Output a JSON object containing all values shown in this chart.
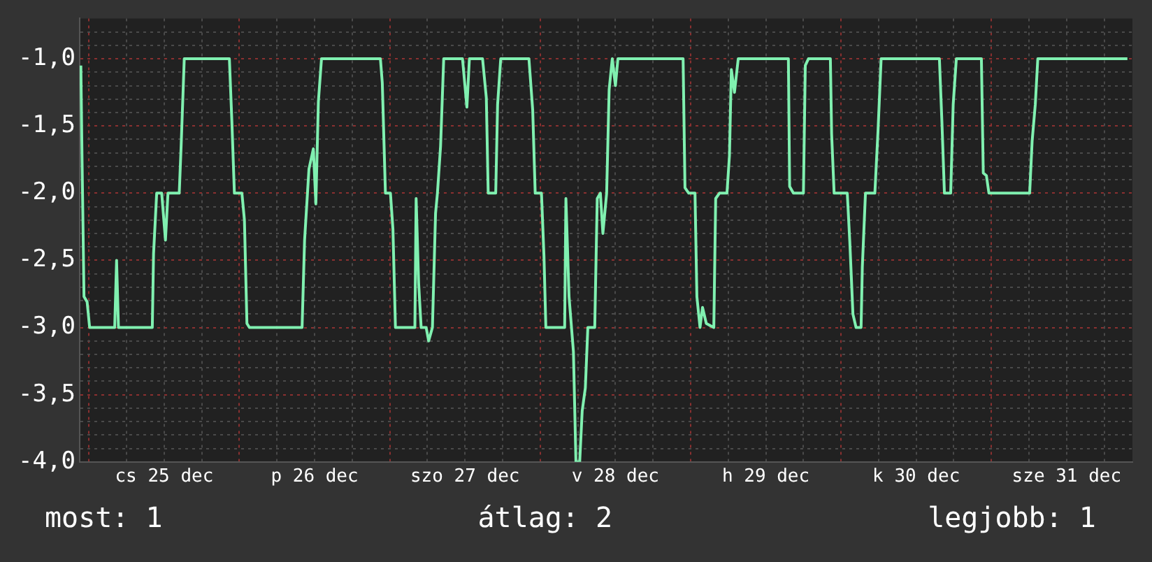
{
  "chart_data": {
    "type": "line",
    "color": "#80f0b0",
    "x": [
      "--12-24T22:42",
      "--12-24T22:54",
      "--12-24T23:12",
      "--12-24T23:42",
      "--12-25T00:06",
      "--12-25T04:06",
      "--12-25T04:24",
      "--12-25T04:42",
      "--12-25T10:06",
      "--12-25T10:18",
      "--12-25T10:48",
      "--12-25T11:36",
      "--12-25T12:12",
      "--12-25T12:36",
      "--12-25T14:24",
      "--12-25T14:42",
      "--12-25T15:12",
      "--12-25T22:24",
      "--12-25T22:48",
      "--12-25T23:12",
      "--12-26T00:24",
      "--12-26T00:48",
      "--12-26T01:12",
      "--12-26T01:36",
      "--12-26T10:00",
      "--12-26T10:24",
      "--12-26T11:06",
      "--12-26T11:48",
      "--12-26T12:12",
      "--12-26T12:36",
      "--12-26T13:06",
      "--12-26T22:30",
      "--12-26T22:48",
      "--12-26T23:18",
      "--12-27T00:06",
      "--12-27T00:30",
      "--12-27T00:54",
      "--12-27T04:00",
      "--12-27T04:12",
      "--12-27T04:36",
      "--12-27T05:00",
      "--12-27T05:48",
      "--12-27T06:12",
      "--12-27T06:48",
      "--12-27T07:18",
      "--12-27T07:36",
      "--12-27T08:06",
      "--12-27T08:36",
      "--12-27T11:36",
      "--12-27T12:18",
      "--12-27T12:42",
      "--12-27T14:48",
      "--12-27T15:24",
      "--12-27T15:42",
      "--12-27T16:54",
      "--12-27T17:12",
      "--12-27T17:42",
      "--12-27T22:12",
      "--12-27T22:48",
      "--12-27T23:12",
      "--12-28T00:12",
      "--12-28T00:36",
      "--12-28T00:54",
      "--12-28T03:54",
      "--12-28T04:06",
      "--12-28T04:36",
      "--12-28T05:18",
      "--12-28T05:42",
      "--12-28T06:18",
      "--12-28T06:42",
      "--12-28T07:12",
      "--12-28T07:36",
      "--12-28T08:42",
      "--12-28T09:06",
      "--12-28T09:36",
      "--12-28T10:00",
      "--12-28T10:36",
      "--12-28T11:00",
      "--12-28T11:30",
      "--12-28T12:00",
      "--12-28T12:24",
      "--12-28T22:48",
      "--12-28T23:06",
      "--12-28T23:42",
      "--12-29T00:42",
      "--12-29T01:00",
      "--12-29T01:30",
      "--12-29T01:54",
      "--12-29T02:30",
      "--12-29T03:42",
      "--12-29T04:00",
      "--12-29T04:36",
      "--12-29T05:48",
      "--12-29T06:12",
      "--12-29T06:30",
      "--12-29T07:00",
      "--12-29T07:36",
      "--12-29T15:36",
      "--12-29T15:48",
      "--12-29T16:24",
      "--12-29T18:00",
      "--12-29T18:18",
      "--12-29T18:48",
      "--12-29T22:18",
      "--12-29T22:30",
      "--12-29T22:54",
      "--12-30T01:00",
      "--12-30T01:24",
      "--12-30T01:54",
      "--12-30T02:24",
      "--12-30T03:12",
      "--12-30T03:24",
      "--12-30T03:54",
      "--12-30T05:24",
      "--12-30T05:54",
      "--12-30T06:24",
      "--12-30T15:42",
      "--12-30T16:06",
      "--12-30T16:30",
      "--12-30T17:30",
      "--12-30T17:54",
      "--12-30T18:24",
      "--12-30T22:24",
      "--12-30T22:42",
      "--12-30T23:12",
      "--12-30T23:36",
      "--12-31T06:06",
      "--12-31T06:30",
      "--12-31T07:00",
      "--12-31T07:24",
      "--12-31T21:42"
    ],
    "values": [
      -1.05,
      -1.78,
      -2.77,
      -2.81,
      -3.0,
      -3.0,
      -2.5,
      -3.0,
      -3.0,
      -2.45,
      -2.0,
      -2.0,
      -2.35,
      -2.0,
      -2.0,
      -1.65,
      -1.0,
      -1.0,
      -1.47,
      -2.0,
      -2.0,
      -2.2,
      -2.97,
      -3.0,
      -3.0,
      -2.35,
      -1.82,
      -1.67,
      -2.08,
      -1.32,
      -1.0,
      -1.0,
      -1.18,
      -2.0,
      -2.0,
      -2.27,
      -3.0,
      -3.0,
      -2.04,
      -2.67,
      -3.0,
      -3.0,
      -3.1,
      -3.0,
      -2.15,
      -2.0,
      -1.65,
      -1.0,
      -1.0,
      -1.36,
      -1.0,
      -1.0,
      -1.29,
      -2.0,
      -2.0,
      -1.34,
      -1.0,
      -1.0,
      -1.38,
      -2.0,
      -2.0,
      -2.47,
      -3.0,
      -3.0,
      -2.04,
      -2.77,
      -3.18,
      -4.0,
      -4.0,
      -3.62,
      -3.45,
      -3.0,
      -3.0,
      -2.04,
      -2.0,
      -2.3,
      -2.0,
      -1.23,
      -1.0,
      -1.2,
      -1.0,
      -1.0,
      -1.96,
      -2.0,
      -2.0,
      -2.77,
      -3.0,
      -2.85,
      -2.97,
      -3.0,
      -2.04,
      -2.0,
      -2.0,
      -1.72,
      -1.08,
      -1.25,
      -1.0,
      -1.0,
      -1.95,
      -2.0,
      -2.0,
      -1.05,
      -1.0,
      -1.0,
      -1.56,
      -2.0,
      -2.0,
      -2.36,
      -2.9,
      -3.0,
      -3.0,
      -2.55,
      -2.0,
      -2.0,
      -1.54,
      -1.0,
      -1.0,
      -1.47,
      -2.0,
      -2.0,
      -1.34,
      -1.0,
      -1.0,
      -1.85,
      -1.87,
      -2.0,
      -2.0,
      -1.61,
      -1.34,
      -1.0,
      -1.0
    ],
    "xlim": [
      "--12-24T22:30",
      "--12-31T22:30"
    ],
    "xticks": [
      {
        "value": "--12-25T00:00",
        "label": null
      },
      {
        "value": "--12-25T06:00",
        "label": null
      },
      {
        "value": "--12-25T12:00",
        "label": "cs 25 dec"
      },
      {
        "value": "--12-25T18:00",
        "label": null
      },
      {
        "value": "--12-26T00:00",
        "label": null
      },
      {
        "value": "--12-26T06:00",
        "label": null
      },
      {
        "value": "--12-26T12:00",
        "label": "p 26 dec"
      },
      {
        "value": "--12-26T18:00",
        "label": null
      },
      {
        "value": "--12-27T00:00",
        "label": null
      },
      {
        "value": "--12-27T06:00",
        "label": null
      },
      {
        "value": "--12-27T12:00",
        "label": "szo 27 dec"
      },
      {
        "value": "--12-27T18:00",
        "label": null
      },
      {
        "value": "--12-28T00:00",
        "label": null
      },
      {
        "value": "--12-28T06:00",
        "label": null
      },
      {
        "value": "--12-28T12:00",
        "label": "v 28 dec"
      },
      {
        "value": "--12-28T18:00",
        "label": null
      },
      {
        "value": "--12-29T00:00",
        "label": null
      },
      {
        "value": "--12-29T06:00",
        "label": null
      },
      {
        "value": "--12-29T12:00",
        "label": "h 29 dec"
      },
      {
        "value": "--12-29T18:00",
        "label": null
      },
      {
        "value": "--12-30T00:00",
        "label": null
      },
      {
        "value": "--12-30T06:00",
        "label": null
      },
      {
        "value": "--12-30T12:00",
        "label": "k 30 dec"
      },
      {
        "value": "--12-30T18:00",
        "label": null
      },
      {
        "value": "--12-31T00:00",
        "label": null
      },
      {
        "value": "--12-31T06:00",
        "label": null
      },
      {
        "value": "--12-31T12:00",
        "label": "sze 31 dec"
      },
      {
        "value": "--12-31T18:00",
        "label": null
      }
    ],
    "ylim": [
      -4,
      -0.7
    ],
    "yticks": [
      {
        "value": -4,
        "label": "-4,0"
      },
      {
        "value": -3.9,
        "label": null
      },
      {
        "value": -3.8,
        "label": null
      },
      {
        "value": -3.7,
        "label": null
      },
      {
        "value": -3.6,
        "label": null
      },
      {
        "value": -3.5,
        "label": "-3,5"
      },
      {
        "value": -3.4,
        "label": null
      },
      {
        "value": -3.3,
        "label": null
      },
      {
        "value": -3.2,
        "label": null
      },
      {
        "value": -3.1,
        "label": null
      },
      {
        "value": -3,
        "label": "-3,0"
      },
      {
        "value": -2.9,
        "label": null
      },
      {
        "value": -2.8,
        "label": null
      },
      {
        "value": -2.7,
        "label": null
      },
      {
        "value": -2.6,
        "label": null
      },
      {
        "value": -2.5,
        "label": "-2,5"
      },
      {
        "value": -2.4,
        "label": null
      },
      {
        "value": -2.3,
        "label": null
      },
      {
        "value": -2.2,
        "label": null
      },
      {
        "value": -2.1,
        "label": null
      },
      {
        "value": -2,
        "label": "-2,0"
      },
      {
        "value": -1.9,
        "label": null
      },
      {
        "value": -1.8,
        "label": null
      },
      {
        "value": -1.7,
        "label": null
      },
      {
        "value": -1.6,
        "label": null
      },
      {
        "value": -1.5,
        "label": "-1,5"
      },
      {
        "value": -1.4,
        "label": null
      },
      {
        "value": -1.3,
        "label": null
      },
      {
        "value": -1.2,
        "label": null
      },
      {
        "value": -1.1,
        "label": null
      },
      {
        "value": -1,
        "label": "-1,0"
      },
      {
        "value": -0.9,
        "label": null
      },
      {
        "value": -0.8,
        "label": null
      }
    ],
    "grid": true,
    "legend": false,
    "marker": "none",
    "line_style": "solid",
    "annotations": [
      "most: 1",
      "átlag: 2",
      "legjobb: 1"
    ]
  }
}
